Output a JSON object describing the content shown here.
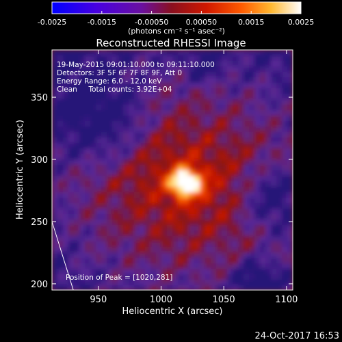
{
  "chart_data": {
    "type": "heatmap",
    "title": "Reconstructed RHESSI Image",
    "xlabel": "Heliocentric X (arcsec)",
    "ylabel": "Heliocentric Y (arcsec)",
    "xlim": [
      913,
      1105
    ],
    "ylim": [
      195,
      388
    ],
    "x_ticks": [
      "950",
      "1000",
      "1050",
      "1100"
    ],
    "x_tick_values": [
      950,
      1000,
      1050,
      1100
    ],
    "y_ticks": [
      "200",
      "250",
      "300",
      "350"
    ],
    "y_tick_values": [
      200,
      250,
      300,
      350
    ],
    "colorbar": {
      "range": [
        -0.0025,
        0.0025
      ],
      "tick_labels": [
        "-0.0025",
        "-0.0015",
        "-0.00050",
        "0.00050",
        "0.0015",
        "0.0025"
      ],
      "tick_values": [
        -0.0025,
        -0.0015,
        -0.0005,
        0.0005,
        0.0015,
        0.0025
      ],
      "unit_label": "(photons cm⁻² s⁻¹ asec⁻²)",
      "colors": [
        "#0000ff",
        "#6a00c8",
        "#7a1a5a",
        "#aa1008",
        "#e82a00",
        "#ff8a00",
        "#ffe070",
        "#ffffff"
      ]
    },
    "annotations": [
      "19-May-2015 09:01:10.000 to 09:11:10.000",
      "Detectors: 3F 5F 6F 7F 8F 9F, Att 0",
      "Energy Range: 6.0 - 12.0 keV",
      "Clean     Total counts: 3.92E+04"
    ],
    "peak_label": "Position of Peak = [1020,281]",
    "peak": [
      1020,
      281
    ],
    "limb_line": [
      [
        913,
        250
      ],
      [
        930,
        195
      ]
    ]
  },
  "footer": {
    "date": "24-Oct-2017 16:53"
  }
}
